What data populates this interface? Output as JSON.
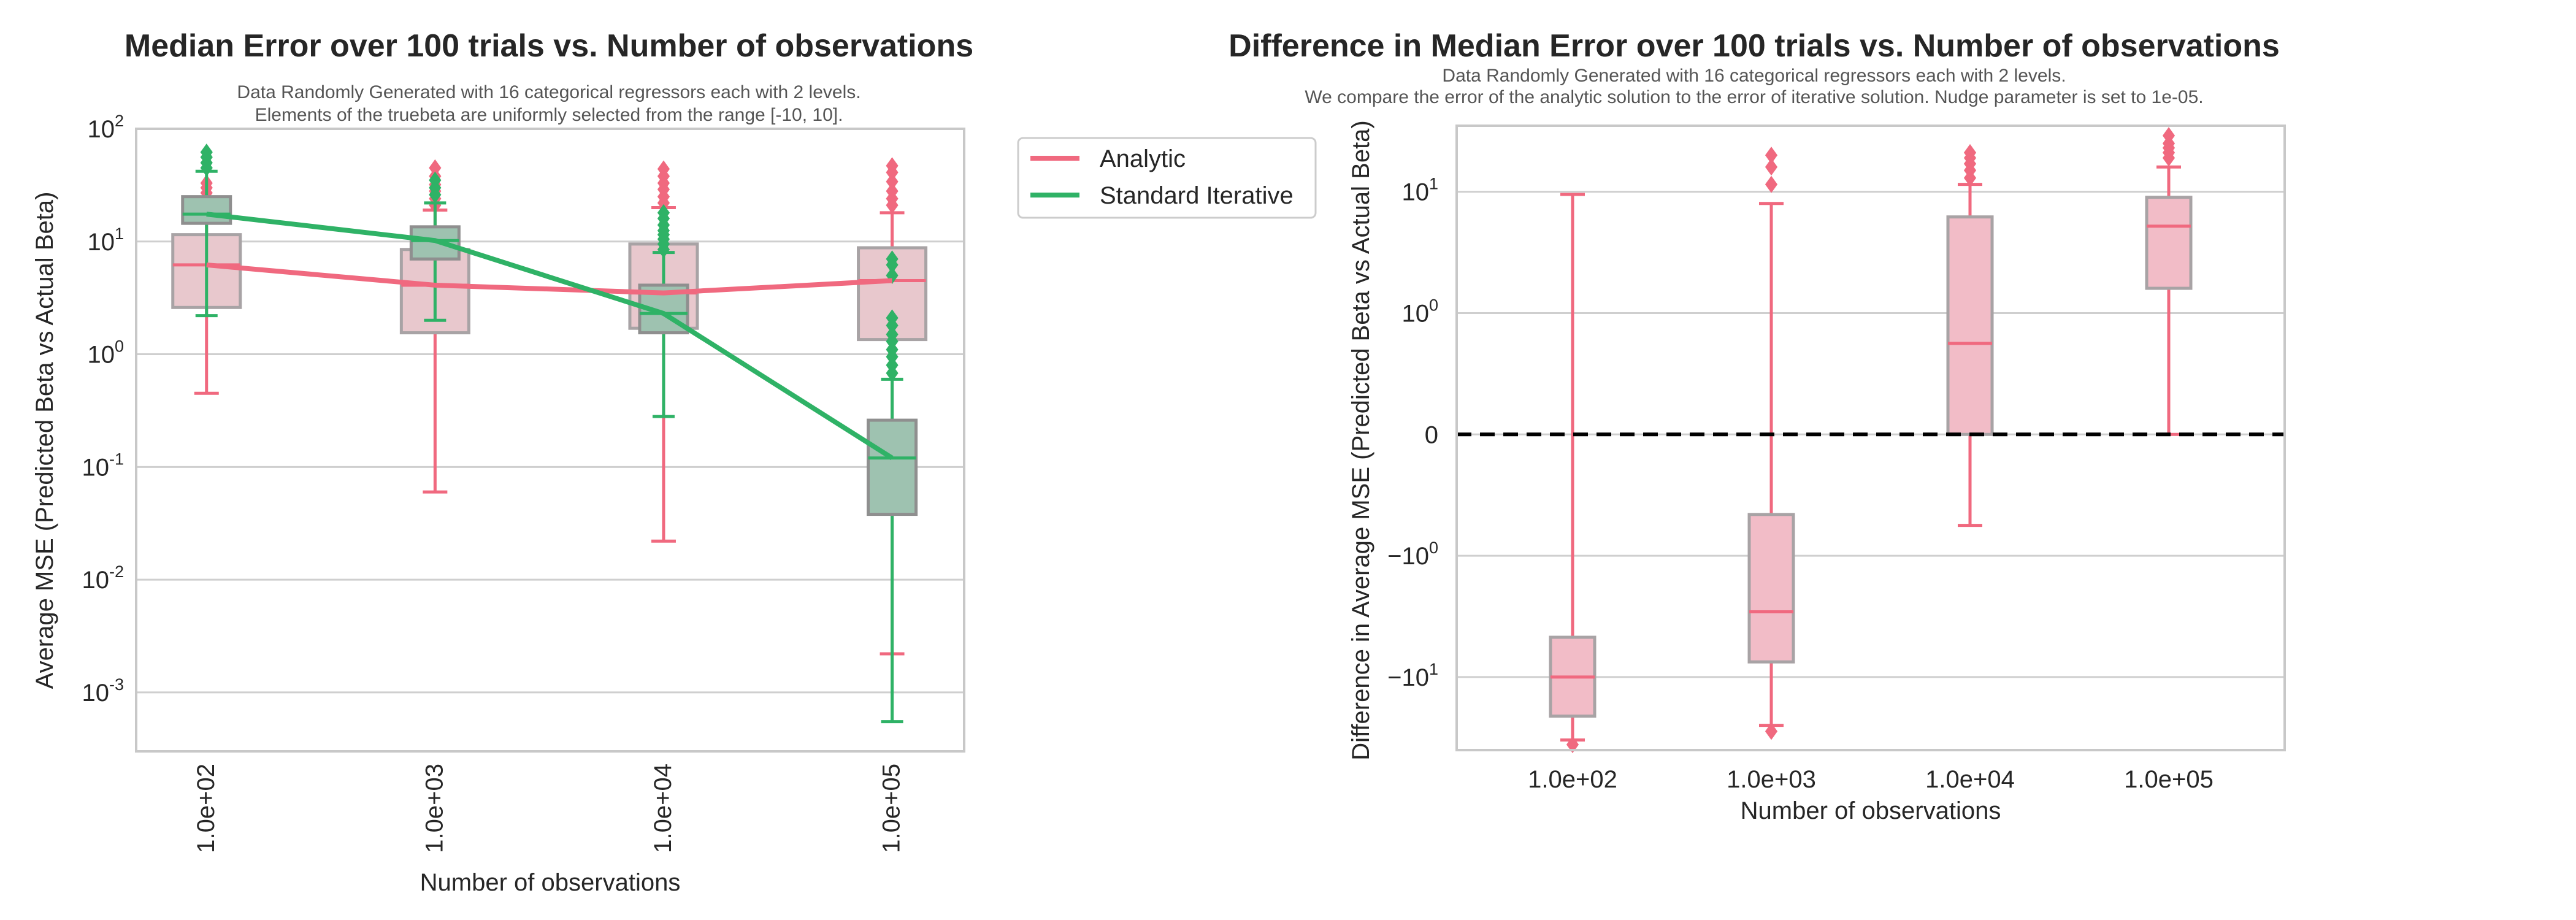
{
  "colors": {
    "analytic": "#f0697f",
    "analytic_box": "#e8c8cd",
    "analytic_box2": "#f2bcc7",
    "box_edge": "#a8a3a5",
    "iterative": "#2fb266",
    "iterative_box": "#9ec2b0",
    "grid": "#cfcfcf",
    "frame": "#c8c8c8",
    "zero_line": "#000000"
  },
  "chart_data": [
    {
      "type": "box",
      "title": "Median Error over 100 trials vs. Number of observations",
      "subtitle_lines": [
        "Data Randomly Generated with 16 categorical regressors each with 2 levels.",
        "Elements of the truebeta are uniformly selected from the range [-10, 10]."
      ],
      "xlabel": "Number of observations",
      "ylabel": "Average MSE (Predicted Beta vs Actual Beta)",
      "yscale": "log",
      "ylim": [
        0.0003,
        100
      ],
      "categories": [
        "1.0e+02",
        "1.0e+03",
        "1.0e+04",
        "1.0e+05"
      ],
      "y_ticks": [
        {
          "base": "10",
          "exp": "-3"
        },
        {
          "base": "10",
          "exp": "-2"
        },
        {
          "base": "10",
          "exp": "-1"
        },
        {
          "base": "10",
          "exp": "0"
        },
        {
          "base": "10",
          "exp": "1"
        },
        {
          "base": "10",
          "exp": "2"
        }
      ],
      "legend": {
        "position": "outside-right",
        "entries": [
          "Analytic",
          "Standard Iterative"
        ]
      },
      "series": [
        {
          "name": "Analytic",
          "medians": [
            6.2,
            4.1,
            3.5,
            4.5
          ],
          "boxes": [
            {
              "whislo": 0.45,
              "q1": 2.6,
              "med": 6.2,
              "q3": 11.5,
              "whishi": 23,
              "fliers": [
                24,
                27,
                30,
                33
              ]
            },
            {
              "whislo": 0.06,
              "q1": 1.55,
              "med": 4.1,
              "q3": 8.5,
              "whishi": 19,
              "fliers": [
                21,
                24,
                28,
                32,
                38,
                45
              ]
            },
            {
              "whislo": 0.022,
              "q1": 1.7,
              "med": 3.5,
              "q3": 9.5,
              "whishi": 20,
              "fliers": [
                22,
                25,
                29,
                33,
                38,
                44
              ]
            },
            {
              "whislo": 0.0022,
              "q1": 1.35,
              "med": 4.5,
              "q3": 8.8,
              "whishi": 18,
              "fliers": [
                21,
                24,
                28,
                34,
                41,
                47
              ]
            }
          ]
        },
        {
          "name": "Standard Iterative",
          "medians": [
            17.5,
            10.2,
            2.3,
            0.12
          ],
          "boxes": [
            {
              "whislo": 2.2,
              "q1": 14.5,
              "med": 17.5,
              "q3": 25,
              "whishi": 42,
              "fliers": [
                45,
                50,
                56,
                62
              ]
            },
            {
              "whislo": 2.0,
              "q1": 7.0,
              "med": 10.2,
              "q3": 13.5,
              "whishi": 22,
              "fliers": [
                26,
                30,
                35
              ]
            },
            {
              "whislo": 0.28,
              "q1": 1.55,
              "med": 2.3,
              "q3": 4.1,
              "whishi": 8.0,
              "fliers": [
                8.5,
                9.5,
                10.5,
                11.5,
                12.5,
                14,
                16,
                18
              ]
            },
            {
              "whislo": 0.00055,
              "q1": 0.038,
              "med": 0.12,
              "q3": 0.26,
              "whishi": 0.6,
              "fliers": [
                0.68,
                0.8,
                0.95,
                1.1,
                1.3,
                1.5,
                1.8,
                2.1,
                5.0,
                6.2,
                7.0
              ]
            }
          ]
        }
      ]
    },
    {
      "type": "box",
      "title": "Difference in Median Error over 100 trials vs. Number of observations",
      "subtitle_lines": [
        "Data Randomly Generated with 16 categorical regressors each with 2 levels.",
        "We compare the error of the analytic solution to the error of iterative solution. Nudge parameter is set to 1e-05."
      ],
      "xlabel": "Number of observations",
      "ylabel": "Difference in Average MSE (Predicted Beta vs Actual Beta)",
      "yscale": "symlog",
      "linthresh": 1,
      "ylim": [
        -40,
        35
      ],
      "categories": [
        "1.0e+02",
        "1.0e+03",
        "1.0e+04",
        "1.0e+05"
      ],
      "y_ticks": [
        {
          "value": -10,
          "base": "−10",
          "exp": "1"
        },
        {
          "value": -1,
          "base": "−10",
          "exp": "0"
        },
        {
          "value": 0,
          "base": "0",
          "exp": ""
        },
        {
          "value": 1,
          "base": "10",
          "exp": "0"
        },
        {
          "value": 10,
          "base": "10",
          "exp": "1"
        }
      ],
      "reference_line": 0,
      "series": [
        {
          "name": "Analytic",
          "boxes": [
            {
              "whislo": -33,
              "q1": -21,
              "med": -10,
              "q3": -4.7,
              "whishi": 9.5,
              "fliers": [
                -36
              ]
            },
            {
              "whislo": -25,
              "q1": -7.5,
              "med": -2.9,
              "q3": -0.66,
              "whishi": 8,
              "fliers": [
                -28,
                11.5,
                16,
                20
              ]
            },
            {
              "whislo": -0.75,
              "q1": 0,
              "med": 0.75,
              "q3": 6.2,
              "whishi": 11.5,
              "fliers": [
                13,
                15,
                17,
                19,
                21
              ]
            },
            {
              "whislo": 0,
              "q1": 1.6,
              "med": 5.2,
              "q3": 9.0,
              "whishi": 16,
              "fliers": [
                19,
                21,
                23,
                25,
                29
              ]
            }
          ]
        }
      ]
    }
  ]
}
